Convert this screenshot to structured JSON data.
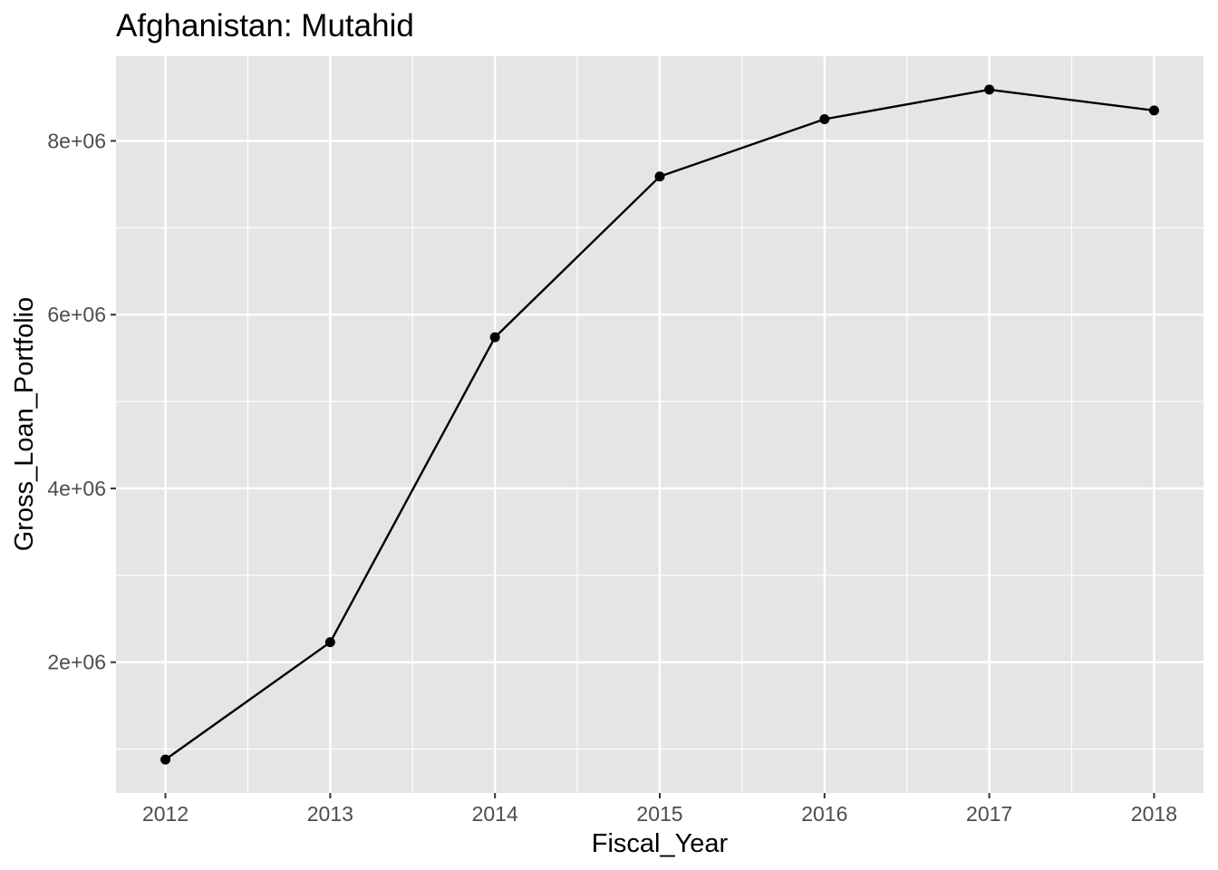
{
  "chart_data": {
    "type": "line",
    "title": "Afghanistan:  Mutahid",
    "xlabel": "Fiscal_Year",
    "ylabel": "Gross_Loan_Portfolio",
    "x": [
      2012,
      2013,
      2014,
      2015,
      2016,
      2017,
      2018
    ],
    "values": [
      880000,
      2230000,
      5740000,
      7590000,
      8250000,
      8590000,
      8350000
    ],
    "x_ticks": [
      "2012",
      "2013",
      "2014",
      "2015",
      "2016",
      "2017",
      "2018"
    ],
    "y_ticks": [
      {
        "value": 2000000,
        "label": "2e+06"
      },
      {
        "value": 4000000,
        "label": "4e+06"
      },
      {
        "value": 6000000,
        "label": "6e+06"
      },
      {
        "value": 8000000,
        "label": "8e+06"
      }
    ],
    "xlim": [
      2011.7,
      2018.3
    ],
    "ylim": [
      495000,
      8975000
    ],
    "grid": true,
    "legend": "none",
    "colors": {
      "panel": "#e5e5e5",
      "grid": "#ffffff",
      "line": "#000000",
      "tick_text": "#4d4d4d",
      "tick_mark": "#333333"
    }
  }
}
